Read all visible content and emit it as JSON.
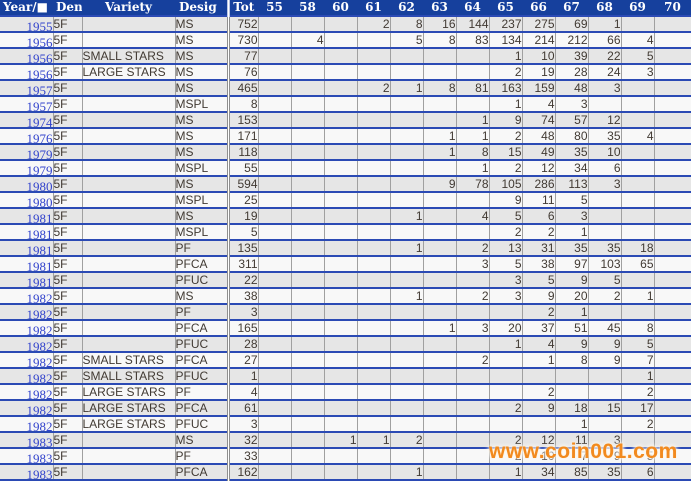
{
  "table": {
    "columns": {
      "year": "Year/■",
      "den": "Den",
      "variety": "Variety",
      "desig": "Desig",
      "tot": "Tot",
      "grades": [
        "55",
        "58",
        "60",
        "61",
        "62",
        "63",
        "64",
        "65",
        "66",
        "67",
        "68",
        "69",
        "70"
      ]
    },
    "rows": [
      {
        "year": "1955",
        "den": "5F",
        "variety": "",
        "desig": "MS",
        "tot": "752",
        "grades": {
          "61": "2",
          "62": "8",
          "63": "16",
          "64": "144",
          "65": "237",
          "66": "275",
          "67": "69",
          "68": "1"
        }
      },
      {
        "year": "1956",
        "den": "5F",
        "variety": "",
        "desig": "MS",
        "tot": "730",
        "grades": {
          "58": "4",
          "62": "5",
          "63": "8",
          "64": "83",
          "65": "134",
          "66": "214",
          "67": "212",
          "68": "66",
          "69": "4"
        }
      },
      {
        "year": "1956",
        "den": "5F",
        "variety": "SMALL STARS",
        "desig": "MS",
        "tot": "77",
        "grades": {
          "65": "1",
          "66": "10",
          "67": "39",
          "68": "22",
          "69": "5"
        }
      },
      {
        "year": "1956",
        "den": "5F",
        "variety": "LARGE STARS",
        "desig": "MS",
        "tot": "76",
        "grades": {
          "65": "2",
          "66": "19",
          "67": "28",
          "68": "24",
          "69": "3"
        }
      },
      {
        "year": "1957",
        "den": "5F",
        "variety": "",
        "desig": "MS",
        "tot": "465",
        "grades": {
          "61": "2",
          "62": "1",
          "63": "8",
          "64": "81",
          "65": "163",
          "66": "159",
          "67": "48",
          "68": "3"
        }
      },
      {
        "year": "1957",
        "den": "5F",
        "variety": "",
        "desig": "MSPL",
        "tot": "8",
        "grades": {
          "65": "1",
          "66": "4",
          "67": "3"
        }
      },
      {
        "year": "1974",
        "den": "5F",
        "variety": "",
        "desig": "MS",
        "tot": "153",
        "grades": {
          "64": "1",
          "65": "9",
          "66": "74",
          "67": "57",
          "68": "12"
        }
      },
      {
        "year": "1976",
        "den": "5F",
        "variety": "",
        "desig": "MS",
        "tot": "171",
        "grades": {
          "63": "1",
          "64": "1",
          "65": "2",
          "66": "48",
          "67": "80",
          "68": "35",
          "69": "4"
        }
      },
      {
        "year": "1979",
        "den": "5F",
        "variety": "",
        "desig": "MS",
        "tot": "118",
        "grades": {
          "63": "1",
          "64": "8",
          "65": "15",
          "66": "49",
          "67": "35",
          "68": "10"
        }
      },
      {
        "year": "1979",
        "den": "5F",
        "variety": "",
        "desig": "MSPL",
        "tot": "55",
        "grades": {
          "64": "1",
          "65": "2",
          "66": "12",
          "67": "34",
          "68": "6"
        }
      },
      {
        "year": "1980",
        "den": "5F",
        "variety": "",
        "desig": "MS",
        "tot": "594",
        "grades": {
          "63": "9",
          "64": "78",
          "65": "105",
          "66": "286",
          "67": "113",
          "68": "3"
        }
      },
      {
        "year": "1980",
        "den": "5F",
        "variety": "",
        "desig": "MSPL",
        "tot": "25",
        "grades": {
          "65": "9",
          "66": "11",
          "67": "5"
        }
      },
      {
        "year": "1981",
        "den": "5F",
        "variety": "",
        "desig": "MS",
        "tot": "19",
        "grades": {
          "62": "1",
          "64": "4",
          "65": "5",
          "66": "6",
          "67": "3"
        }
      },
      {
        "year": "1981",
        "den": "5F",
        "variety": "",
        "desig": "MSPL",
        "tot": "5",
        "grades": {
          "65": "2",
          "66": "2",
          "67": "1"
        }
      },
      {
        "year": "1981",
        "den": "5F",
        "variety": "",
        "desig": "PF",
        "tot": "135",
        "grades": {
          "62": "1",
          "64": "2",
          "65": "13",
          "66": "31",
          "67": "35",
          "68": "35",
          "69": "18"
        }
      },
      {
        "year": "1981",
        "den": "5F",
        "variety": "",
        "desig": "PFCA",
        "tot": "311",
        "grades": {
          "64": "3",
          "65": "5",
          "66": "38",
          "67": "97",
          "68": "103",
          "69": "65"
        }
      },
      {
        "year": "1981",
        "den": "5F",
        "variety": "",
        "desig": "PFUC",
        "tot": "22",
        "grades": {
          "65": "3",
          "66": "5",
          "67": "9",
          "68": "5"
        }
      },
      {
        "year": "1982",
        "den": "5F",
        "variety": "",
        "desig": "MS",
        "tot": "38",
        "grades": {
          "62": "1",
          "64": "2",
          "65": "3",
          "66": "9",
          "67": "20",
          "68": "2",
          "69": "1"
        }
      },
      {
        "year": "1982",
        "den": "5F",
        "variety": "",
        "desig": "PF",
        "tot": "3",
        "grades": {
          "66": "2",
          "67": "1"
        }
      },
      {
        "year": "1982",
        "den": "5F",
        "variety": "",
        "desig": "PFCA",
        "tot": "165",
        "grades": {
          "63": "1",
          "64": "3",
          "65": "20",
          "66": "37",
          "67": "51",
          "68": "45",
          "69": "8"
        }
      },
      {
        "year": "1982",
        "den": "5F",
        "variety": "",
        "desig": "PFUC",
        "tot": "28",
        "grades": {
          "65": "1",
          "66": "4",
          "67": "9",
          "68": "9",
          "69": "5"
        }
      },
      {
        "year": "1982",
        "den": "5F",
        "variety": "SMALL STARS",
        "desig": "PFCA",
        "tot": "27",
        "grades": {
          "64": "2",
          "66": "1",
          "67": "8",
          "68": "9",
          "69": "7"
        }
      },
      {
        "year": "1982",
        "den": "5F",
        "variety": "SMALL STARS",
        "desig": "PFUC",
        "tot": "1",
        "grades": {
          "69": "1"
        }
      },
      {
        "year": "1982",
        "den": "5F",
        "variety": "LARGE STARS",
        "desig": "PF",
        "tot": "4",
        "grades": {
          "66": "2",
          "69": "2"
        }
      },
      {
        "year": "1982",
        "den": "5F",
        "variety": "LARGE STARS",
        "desig": "PFCA",
        "tot": "61",
        "grades": {
          "65": "2",
          "66": "9",
          "67": "18",
          "68": "15",
          "69": "17"
        }
      },
      {
        "year": "1982",
        "den": "5F",
        "variety": "LARGE STARS",
        "desig": "PFUC",
        "tot": "3",
        "grades": {
          "67": "1",
          "69": "2"
        }
      },
      {
        "year": "1983",
        "den": "5F",
        "variety": "",
        "desig": "MS",
        "tot": "32",
        "grades": {
          "60": "1",
          "61": "1",
          "62": "2",
          "65": "2",
          "66": "12",
          "67": "11",
          "68": "3"
        }
      },
      {
        "year": "1983",
        "den": "5F",
        "variety": "",
        "desig": "PF",
        "tot": "33",
        "grades": {
          "65": "2",
          "66": "10",
          "67": "7",
          "68": "9",
          "69": "5"
        }
      },
      {
        "year": "1983",
        "den": "5F",
        "variety": "",
        "desig": "PFCA",
        "tot": "162",
        "grades": {
          "62": "1",
          "65": "1",
          "66": "34",
          "67": "85",
          "68": "35",
          "69": "6"
        }
      }
    ]
  },
  "watermark": {
    "text": "www.coin001.com",
    "color": "#f28a1e"
  },
  "colors": {
    "header_bg": "#16409d",
    "row_line_blue": "#2b4ab4",
    "grid_line_grey": "#a0a0a0",
    "row_odd_bg": "#e6e6e6",
    "row_even_bg": "#f8f8f8",
    "year_link_blue": "#3344cc"
  }
}
